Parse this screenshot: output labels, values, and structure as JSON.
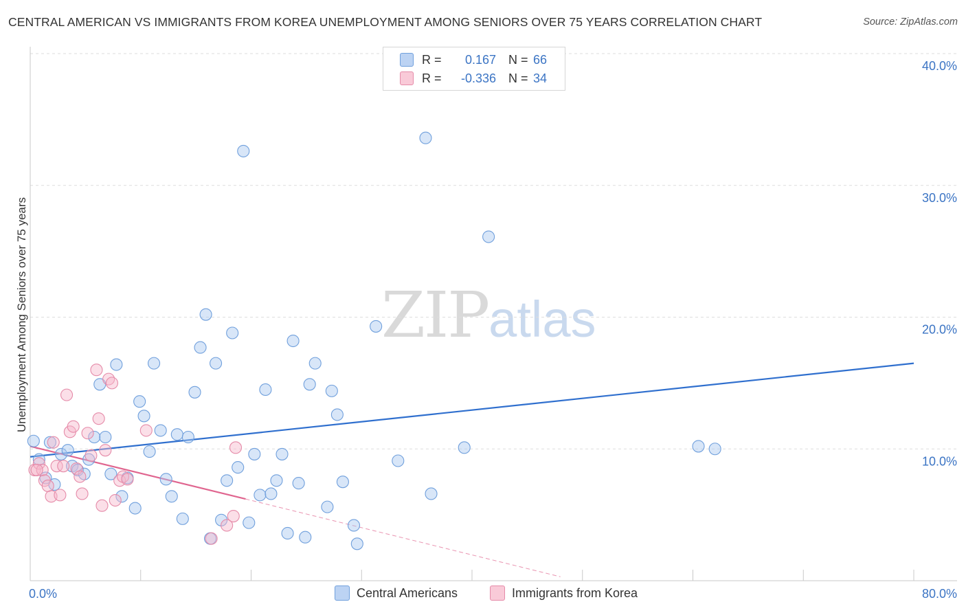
{
  "header": {
    "title": "CENTRAL AMERICAN VS IMMIGRANTS FROM KOREA UNEMPLOYMENT AMONG SENIORS OVER 75 YEARS CORRELATION CHART",
    "source": "Source: ZipAtlas.com"
  },
  "watermark": {
    "zip": "ZIP",
    "atlas": "atlas"
  },
  "legend": {
    "rows": [
      {
        "r_label": "R =",
        "r_value": "0.167",
        "n_label": "N =",
        "n_value": "66",
        "color": "#a9c8f0"
      },
      {
        "r_label": "R =",
        "r_value": "-0.336",
        "n_label": "N =",
        "n_value": "34",
        "color": "#f6b8cb"
      }
    ]
  },
  "bottom_legend": [
    {
      "label": "Central Americans",
      "color": "#a9c8f0"
    },
    {
      "label": "Immigrants from Korea",
      "color": "#f6b8cb"
    }
  ],
  "chart_data": {
    "type": "scatter",
    "title": "CENTRAL AMERICAN VS IMMIGRANTS FROM KOREA UNEMPLOYMENT AMONG SENIORS OVER 75 YEARS CORRELATION CHART",
    "xlabel": "",
    "ylabel": "Unemployment Among Seniors over 75 years",
    "xlim": [
      0,
      80
    ],
    "ylim": [
      0,
      40
    ],
    "x_tick_labels": [
      "0.0%",
      "80.0%"
    ],
    "y_ticks": [
      10,
      20,
      30,
      40
    ],
    "y_tick_labels": [
      "10.0%",
      "20.0%",
      "30.0%",
      "40.0%"
    ],
    "grid": true,
    "series": [
      {
        "name": "Central Americans",
        "color": "#a9c8f0",
        "stroke": "#6f9fdc",
        "line_color": "#2f6fce",
        "trend": {
          "x": [
            0,
            80
          ],
          "y": [
            9.4,
            16.5
          ]
        },
        "points": [
          [
            0.3,
            10.6
          ],
          [
            0.8,
            9.2
          ],
          [
            1.4,
            7.8
          ],
          [
            1.8,
            10.5
          ],
          [
            2.2,
            7.3
          ],
          [
            2.8,
            9.6
          ],
          [
            3.4,
            9.9
          ],
          [
            3.8,
            8.7
          ],
          [
            4.3,
            8.4
          ],
          [
            4.9,
            8.1
          ],
          [
            5.3,
            9.2
          ],
          [
            5.8,
            10.9
          ],
          [
            6.3,
            14.9
          ],
          [
            6.8,
            10.9
          ],
          [
            7.3,
            8.1
          ],
          [
            7.8,
            16.4
          ],
          [
            8.3,
            6.4
          ],
          [
            8.8,
            7.8
          ],
          [
            9.5,
            5.5
          ],
          [
            9.9,
            13.6
          ],
          [
            10.3,
            12.5
          ],
          [
            10.8,
            9.8
          ],
          [
            11.2,
            16.5
          ],
          [
            11.8,
            11.4
          ],
          [
            12.3,
            7.7
          ],
          [
            12.8,
            6.4
          ],
          [
            13.3,
            11.1
          ],
          [
            13.8,
            4.7
          ],
          [
            14.3,
            10.9
          ],
          [
            14.9,
            14.3
          ],
          [
            15.4,
            17.7
          ],
          [
            15.9,
            20.2
          ],
          [
            16.3,
            3.2
          ],
          [
            16.8,
            16.5
          ],
          [
            17.3,
            4.6
          ],
          [
            17.8,
            7.6
          ],
          [
            18.3,
            18.8
          ],
          [
            18.8,
            8.6
          ],
          [
            19.3,
            32.6
          ],
          [
            19.8,
            4.4
          ],
          [
            20.3,
            9.6
          ],
          [
            20.8,
            6.5
          ],
          [
            21.3,
            14.5
          ],
          [
            21.8,
            6.6
          ],
          [
            22.3,
            7.6
          ],
          [
            22.8,
            9.6
          ],
          [
            23.3,
            3.6
          ],
          [
            23.8,
            18.2
          ],
          [
            24.3,
            7.4
          ],
          [
            24.9,
            3.3
          ],
          [
            25.3,
            14.9
          ],
          [
            25.8,
            16.5
          ],
          [
            26.9,
            5.6
          ],
          [
            27.3,
            14.4
          ],
          [
            27.8,
            12.6
          ],
          [
            28.3,
            7.5
          ],
          [
            29.3,
            4.2
          ],
          [
            29.6,
            2.8
          ],
          [
            31.3,
            19.3
          ],
          [
            33.3,
            9.1
          ],
          [
            35.8,
            33.6
          ],
          [
            36.3,
            6.6
          ],
          [
            39.3,
            10.1
          ],
          [
            41.5,
            26.1
          ],
          [
            60.5,
            10.2
          ],
          [
            62.0,
            10.0
          ]
        ]
      },
      {
        "name": "Immigrants from Korea",
        "color": "#f6b8cb",
        "stroke": "#e58aa8",
        "line_color": "#e0658f",
        "trend": {
          "x": [
            0,
            19.5
          ],
          "y": [
            10.2,
            6.2
          ]
        },
        "trend_ext": {
          "x": [
            19.5,
            48
          ],
          "y": [
            6.2,
            0.3
          ]
        },
        "points": [
          [
            0.4,
            8.4
          ],
          [
            0.8,
            8.9
          ],
          [
            1.1,
            8.4
          ],
          [
            1.3,
            7.6
          ],
          [
            1.6,
            7.2
          ],
          [
            1.9,
            6.4
          ],
          [
            2.1,
            10.5
          ],
          [
            2.4,
            8.7
          ],
          [
            2.7,
            6.5
          ],
          [
            3.0,
            8.7
          ],
          [
            3.3,
            14.1
          ],
          [
            3.6,
            11.3
          ],
          [
            3.9,
            11.7
          ],
          [
            4.2,
            8.5
          ],
          [
            4.5,
            7.9
          ],
          [
            4.7,
            6.6
          ],
          [
            5.2,
            11.2
          ],
          [
            5.5,
            9.5
          ],
          [
            6.0,
            16.0
          ],
          [
            6.2,
            12.3
          ],
          [
            6.5,
            5.7
          ],
          [
            6.8,
            9.9
          ],
          [
            7.1,
            15.3
          ],
          [
            7.4,
            15.0
          ],
          [
            7.7,
            6.1
          ],
          [
            8.1,
            7.6
          ],
          [
            8.4,
            7.9
          ],
          [
            8.8,
            7.7
          ],
          [
            10.5,
            11.4
          ],
          [
            16.4,
            3.2
          ],
          [
            17.8,
            4.2
          ],
          [
            18.4,
            4.9
          ],
          [
            18.6,
            10.1
          ],
          [
            0.6,
            8.4
          ]
        ]
      }
    ]
  }
}
